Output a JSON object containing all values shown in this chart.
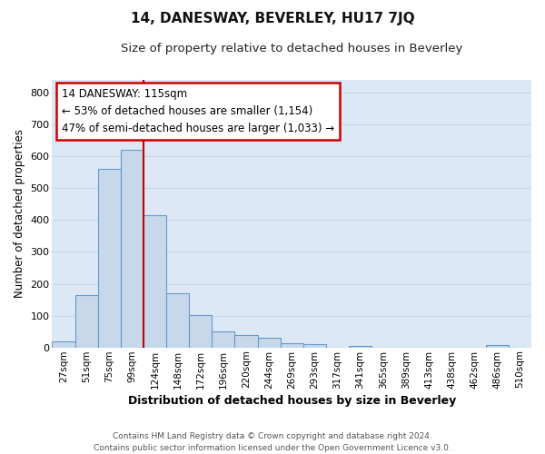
{
  "title": "14, DANESWAY, BEVERLEY, HU17 7JQ",
  "subtitle": "Size of property relative to detached houses in Beverley",
  "xlabel": "Distribution of detached houses by size in Beverley",
  "ylabel": "Number of detached properties",
  "categories": [
    "27sqm",
    "51sqm",
    "75sqm",
    "99sqm",
    "124sqm",
    "148sqm",
    "172sqm",
    "196sqm",
    "220sqm",
    "244sqm",
    "269sqm",
    "293sqm",
    "317sqm",
    "341sqm",
    "365sqm",
    "389sqm",
    "413sqm",
    "438sqm",
    "462sqm",
    "486sqm",
    "510sqm"
  ],
  "values": [
    18,
    165,
    560,
    620,
    415,
    170,
    103,
    50,
    38,
    30,
    13,
    10,
    0,
    5,
    0,
    0,
    0,
    0,
    0,
    8,
    0
  ],
  "bar_color": "#c8d8eb",
  "bar_edge_color": "#6699cc",
  "vline_color": "#cc0000",
  "vline_x_index": 3.5,
  "annotation_line1": "14 DANESWAY: 115sqm",
  "annotation_line2": "← 53% of detached houses are smaller (1,154)",
  "annotation_line3": "47% of semi-detached houses are larger (1,033) →",
  "annotation_box_facecolor": "#ffffff",
  "annotation_box_edgecolor": "#cc0000",
  "ylim": [
    0,
    840
  ],
  "yticks": [
    0,
    100,
    200,
    300,
    400,
    500,
    600,
    700,
    800
  ],
  "plot_bg_color": "#dce8f5",
  "grid_color": "#c8d8eb",
  "fig_bg_color": "#ffffff",
  "footer_line1": "Contains HM Land Registry data © Crown copyright and database right 2024.",
  "footer_line2": "Contains public sector information licensed under the Open Government Licence v3.0."
}
